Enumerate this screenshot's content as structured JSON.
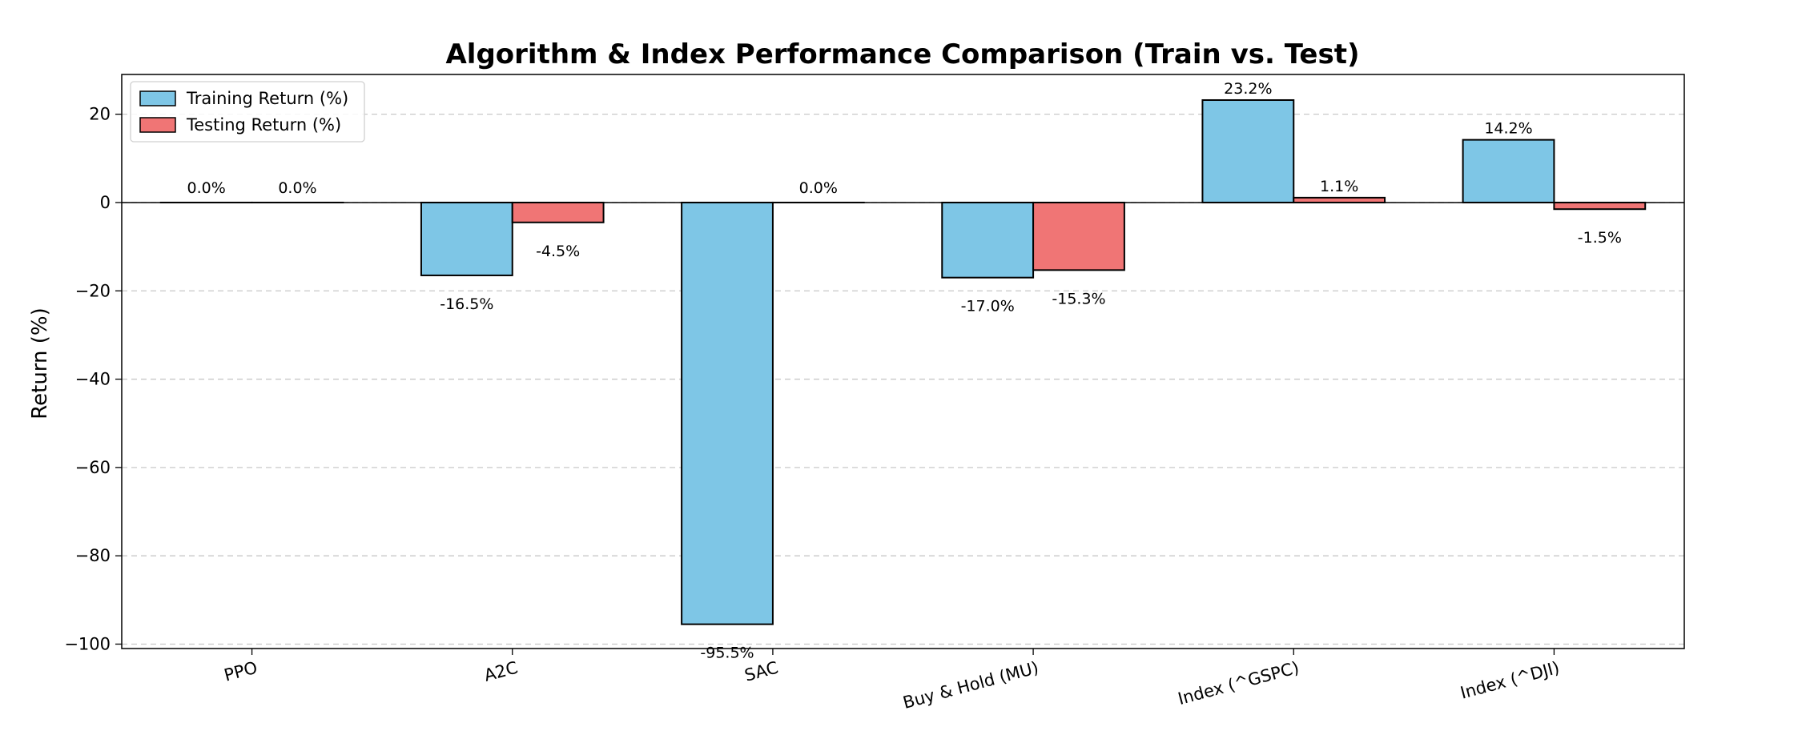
{
  "chart_data": {
    "type": "bar",
    "title": "Algorithm & Index Performance Comparison (Train vs. Test)",
    "xlabel": "",
    "ylabel": "Return (%)",
    "ylim": [
      -101,
      29
    ],
    "yticks": [
      20,
      0,
      -20,
      -40,
      -60,
      -80,
      -100
    ],
    "ytick_labels": [
      "20",
      "0",
      "−20",
      "−40",
      "−60",
      "−80",
      "−100"
    ],
    "grid": "horizontal dashed",
    "legend_position": "top-left",
    "categories": [
      "PPO",
      "A2C",
      "SAC",
      "Buy & Hold (MU)",
      "Index (^GSPC)",
      "Index (^DJI)"
    ],
    "series": [
      {
        "name": "Training Return (%)",
        "color": "#7ec6e6",
        "values": [
          0.0,
          -16.5,
          -95.5,
          -17.0,
          23.2,
          14.2
        ],
        "labels": [
          "0.0%",
          "-16.5%",
          "-95.5%",
          "-17.0%",
          "23.2%",
          "14.2%"
        ]
      },
      {
        "name": "Testing Return (%)",
        "color": "#f07575",
        "values": [
          0.0,
          -4.5,
          0.0,
          -15.3,
          1.1,
          -1.5
        ],
        "labels": [
          "0.0%",
          "-4.5%",
          "0.0%",
          "-15.3%",
          "1.1%",
          "-1.5%"
        ]
      }
    ]
  }
}
